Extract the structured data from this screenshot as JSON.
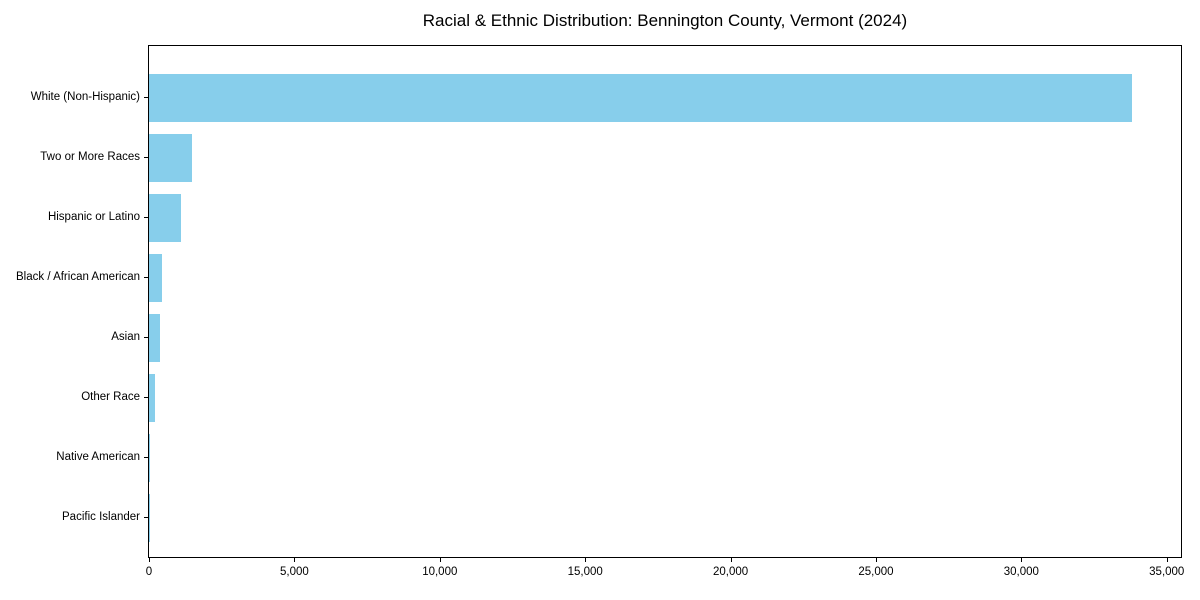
{
  "chart_data": {
    "type": "bar",
    "orientation": "horizontal",
    "title": "Racial & Ethnic Distribution: Bennington County, Vermont (2024)",
    "categories": [
      "White (Non-Hispanic)",
      "Two or More Races",
      "Hispanic or Latino",
      "Black / African American",
      "Asian",
      "Other Race",
      "Native American",
      "Pacific Islander"
    ],
    "values": [
      33800,
      1470,
      1090,
      440,
      370,
      200,
      40,
      10
    ],
    "bar_color": "#87ceeb",
    "xlabel": "",
    "ylabel": "",
    "xlim": [
      0,
      35490
    ],
    "x_ticks": [
      0,
      5000,
      10000,
      15000,
      20000,
      25000,
      30000,
      35000
    ],
    "x_tick_labels": [
      "0",
      "5,000",
      "10,000",
      "15,000",
      "20,000",
      "25,000",
      "30,000",
      "35,000"
    ],
    "grid": false,
    "legend": false,
    "frame": true,
    "text_color": "#000000",
    "spine_color": "#000000"
  }
}
